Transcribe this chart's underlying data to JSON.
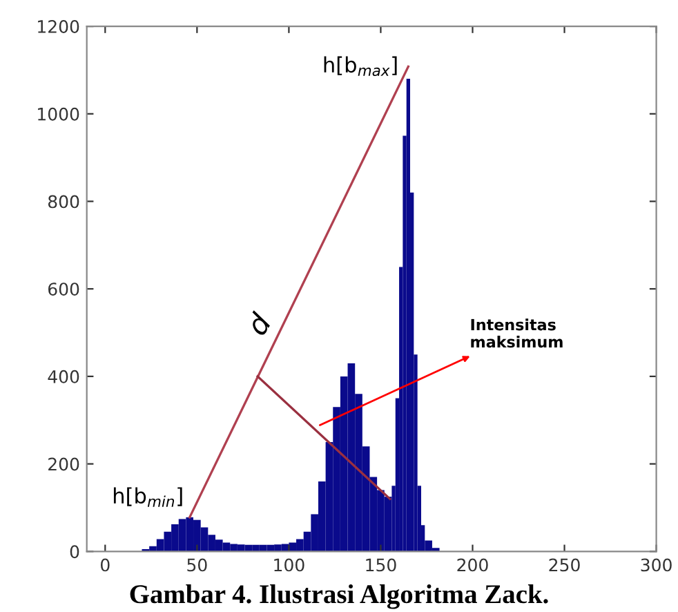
{
  "chart_data": {
    "type": "histogram",
    "title": "Gambar 4. Ilustrasi Algoritma Zack.",
    "bins": [
      20,
      24,
      28,
      32,
      36,
      40,
      44,
      48,
      52,
      56,
      60,
      64,
      68,
      72,
      76,
      80,
      84,
      88,
      92,
      96,
      100,
      104,
      108,
      112,
      116,
      120,
      124,
      128,
      132,
      136,
      140,
      144,
      148,
      152,
      156,
      158,
      160,
      162,
      164,
      166,
      168,
      170,
      172,
      174,
      178,
      182
    ],
    "values": [
      5,
      12,
      28,
      45,
      62,
      74,
      78,
      72,
      55,
      38,
      27,
      20,
      17,
      16,
      15,
      15,
      15,
      15,
      16,
      17,
      20,
      28,
      45,
      85,
      160,
      250,
      330,
      400,
      430,
      360,
      240,
      170,
      140,
      125,
      150,
      350,
      650,
      950,
      1080,
      820,
      450,
      150,
      60,
      25,
      8
    ],
    "color": "#0a0a8c",
    "series": [
      {
        "type": "line",
        "x": [
          46,
          165
        ],
        "values": [
          78,
          1108
        ],
        "color": "#b04050"
      },
      {
        "type": "line",
        "x": [
          83,
          155
        ],
        "values": [
          400,
          120
        ],
        "color": "#9a3040"
      }
    ],
    "annotations": [
      {
        "text": "h[b$_{max}$]",
        "x": 165,
        "y": 1108
      },
      {
        "text": "h[b$_{min}$]",
        "x": 46,
        "y": 78
      },
      "d",
      {
        "text": "Intensitas\nmaksimum",
        "x": 115,
        "y": 285
      }
    ],
    "xlim": [
      -10,
      300
    ],
    "ylim": [
      0,
      1200
    ],
    "xticks": [
      0,
      50,
      100,
      150,
      200,
      250,
      300
    ],
    "yticks": [
      0,
      200,
      400,
      600,
      800,
      1000,
      1200
    ],
    "grid": false,
    "legend": false
  }
}
